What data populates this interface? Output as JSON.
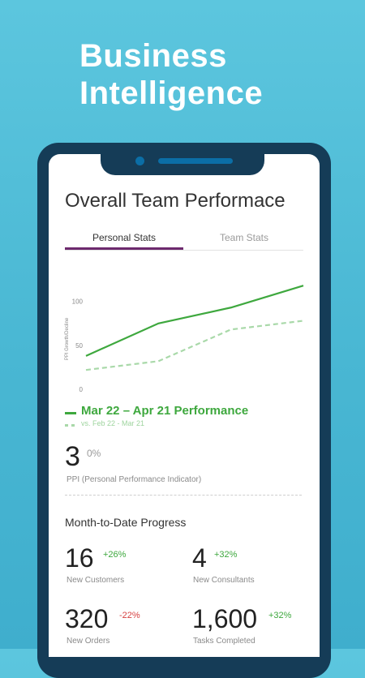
{
  "headline": {
    "line1": "Business",
    "line2": "Intelligence"
  },
  "screen": {
    "title": "Overall Team Performace",
    "tabs": [
      {
        "label": "Personal Stats"
      },
      {
        "label": "Team Stats"
      }
    ],
    "chart_data": {
      "type": "line",
      "ylabel": "PPI Growth/Decline",
      "ylim": [
        0,
        120
      ],
      "yticks": [
        "0",
        "50",
        "100"
      ],
      "x": [
        0,
        1,
        2,
        3
      ],
      "series": [
        {
          "name": "Mar 22 – Apr 21 Performance",
          "values": [
            38,
            75,
            93,
            118
          ],
          "color": "#3ea83e",
          "style": "solid"
        },
        {
          "name": "vs. Feb 22 - Mar 21",
          "values": [
            22,
            32,
            68,
            78
          ],
          "color": "#a9d9a9",
          "style": "dashed"
        }
      ]
    },
    "legend": {
      "current": "Mar 22 – Apr 21 Performance",
      "previous": "vs. Feb 22 - Mar 21"
    },
    "ppi": {
      "value": "3",
      "change": "0%",
      "label": "PPI (Personal Performance Indicator)"
    },
    "mtd_title": "Month-to-Date Progress",
    "stats": [
      {
        "value": "16",
        "change": "+26%",
        "label": "New Customers",
        "trend": "pos"
      },
      {
        "value": "4",
        "change": "+32%",
        "label": "New Consultants",
        "trend": "pos"
      },
      {
        "value": "320",
        "change": "-22%",
        "label": "New Orders",
        "trend": "neg"
      },
      {
        "value": "1,600",
        "change": "+32%",
        "label": "Tasks Completed",
        "trend": "pos"
      }
    ]
  },
  "colors": {
    "background": "#4fbbd6",
    "phone": "#153c57",
    "accent_tab": "#6d2a6e",
    "positive": "#3ea83e",
    "negative": "#d64141"
  }
}
